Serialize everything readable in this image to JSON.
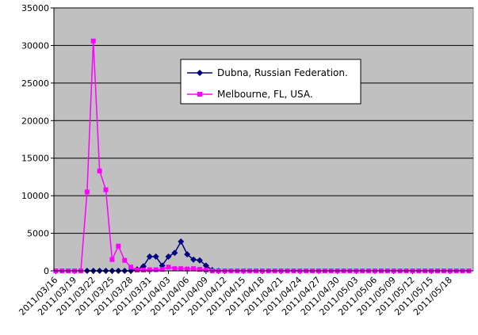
{
  "chart_data": {
    "type": "line",
    "categories": [
      "2011/03/16",
      null,
      null,
      "2011/03/19",
      null,
      null,
      "2011/03/22",
      null,
      null,
      "2011/03/25",
      null,
      null,
      "2011/03/28",
      null,
      null,
      "2011/03/31",
      null,
      null,
      "2011/04/03",
      null,
      null,
      "2011/04/06",
      null,
      null,
      "2011/04/09",
      null,
      null,
      "2011/04/12",
      null,
      null,
      "2011/04/15",
      null,
      null,
      "2011/04/18",
      null,
      null,
      "2011/04/21",
      null,
      null,
      "2011/04/24",
      null,
      null,
      "2011/04/27",
      null,
      null,
      "2011/04/30",
      null,
      null,
      "2011/05/03",
      null,
      null,
      "2011/05/06",
      null,
      null,
      "2011/05/09",
      null,
      null,
      "2011/05/12",
      null,
      null,
      "2011/05/15",
      null,
      null,
      "2011/05/18",
      null,
      null,
      null
    ],
    "series": [
      {
        "name": "Dubna, Russian Federation.",
        "color": "#000080",
        "marker": "diamond",
        "values": [
          null,
          null,
          null,
          null,
          null,
          0,
          0,
          0,
          0,
          0,
          0,
          0,
          0,
          200,
          600,
          1900,
          1900,
          700,
          1900,
          2400,
          3900,
          2200,
          1500,
          1400,
          700,
          100,
          0,
          null,
          null,
          null,
          null,
          null,
          null,
          null,
          null,
          null,
          null,
          null,
          null,
          null,
          null,
          null,
          null,
          null,
          null,
          null,
          null,
          null,
          null,
          null,
          null,
          null,
          null,
          null,
          null,
          null,
          null,
          null,
          null,
          null,
          null,
          null,
          null,
          null,
          null,
          null,
          null
        ]
      },
      {
        "name": "Melbourne, FL, USA.",
        "color": "#ff00ff",
        "marker": "square",
        "values": [
          0,
          0,
          0,
          0,
          0,
          10500,
          30600,
          13300,
          10800,
          1500,
          3300,
          1400,
          500,
          100,
          100,
          150,
          150,
          200,
          500,
          300,
          300,
          250,
          300,
          200,
          100,
          0,
          0,
          0,
          0,
          0,
          0,
          0,
          0,
          0,
          0,
          0,
          0,
          0,
          0,
          0,
          0,
          0,
          0,
          0,
          0,
          0,
          0,
          0,
          0,
          0,
          0,
          0,
          0,
          0,
          0,
          0,
          0,
          0,
          0,
          0,
          0,
          0,
          0,
          0,
          0,
          0,
          0
        ]
      }
    ],
    "ylim": [
      0,
      35000
    ],
    "yticks": [
      0,
      5000,
      10000,
      15000,
      20000,
      25000,
      30000,
      35000
    ],
    "grid": true,
    "legend": "inside-top"
  }
}
